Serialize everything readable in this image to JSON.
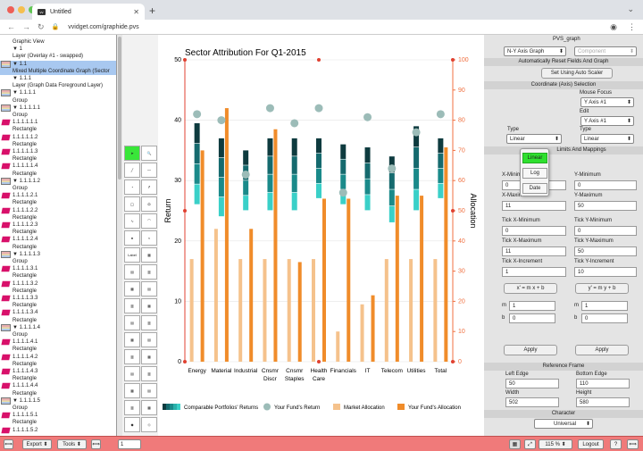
{
  "browser": {
    "tab_title": "Untitled",
    "favicon_text": "vv",
    "url": "vvidget.com/graphide.pvs"
  },
  "tree": [
    {
      "label": "Graphic View",
      "indent": 14,
      "icon": ""
    },
    {
      "label": "▼ 1",
      "indent": 14,
      "icon": ""
    },
    {
      "label": "Layer (Overlay #1 - swapped)",
      "indent": 14,
      "icon": ""
    },
    {
      "label": "▼ 1.1",
      "indent": 14,
      "icon": "grp",
      "sel": true
    },
    {
      "label": "Mixed Multiple Coordinate Graph (Sector",
      "indent": 14,
      "icon": "",
      "sel": true
    },
    {
      "label": "▼ 1.1.1",
      "indent": 14,
      "icon": ""
    },
    {
      "label": "Layer (Graph Data Foreground Layer)",
      "indent": 14,
      "icon": ""
    },
    {
      "label": "▼ 1.1.1.1",
      "indent": 14,
      "icon": "grp"
    },
    {
      "label": "Group",
      "indent": 14,
      "icon": ""
    },
    {
      "label": "▼ 1.1.1.1.1",
      "indent": 14,
      "icon": "grp"
    },
    {
      "label": "Group",
      "indent": 14,
      "icon": ""
    },
    {
      "label": "1.1.1.1.1.1",
      "indent": 14,
      "icon": "rect"
    },
    {
      "label": "Rectangle",
      "indent": 14,
      "icon": ""
    },
    {
      "label": "1.1.1.1.1.2",
      "indent": 14,
      "icon": "rect"
    },
    {
      "label": "Rectangle",
      "indent": 14,
      "icon": ""
    },
    {
      "label": "1.1.1.1.1.3",
      "indent": 14,
      "icon": "rect"
    },
    {
      "label": "Rectangle",
      "indent": 14,
      "icon": ""
    },
    {
      "label": "1.1.1.1.1.4",
      "indent": 14,
      "icon": "rect"
    },
    {
      "label": "Rectangle",
      "indent": 14,
      "icon": ""
    },
    {
      "label": "▼ 1.1.1.1.2",
      "indent": 14,
      "icon": "grp"
    },
    {
      "label": "Group",
      "indent": 14,
      "icon": ""
    },
    {
      "label": "1.1.1.1.2.1",
      "indent": 14,
      "icon": "rect"
    },
    {
      "label": "Rectangle",
      "indent": 14,
      "icon": ""
    },
    {
      "label": "1.1.1.1.2.2",
      "indent": 14,
      "icon": "rect"
    },
    {
      "label": "Rectangle",
      "indent": 14,
      "icon": ""
    },
    {
      "label": "1.1.1.1.2.3",
      "indent": 14,
      "icon": "rect"
    },
    {
      "label": "Rectangle",
      "indent": 14,
      "icon": ""
    },
    {
      "label": "1.1.1.1.2.4",
      "indent": 14,
      "icon": "rect"
    },
    {
      "label": "Rectangle",
      "indent": 14,
      "icon": ""
    },
    {
      "label": "▼ 1.1.1.1.3",
      "indent": 14,
      "icon": "grp"
    },
    {
      "label": "Group",
      "indent": 14,
      "icon": ""
    },
    {
      "label": "1.1.1.1.3.1",
      "indent": 14,
      "icon": "rect"
    },
    {
      "label": "Rectangle",
      "indent": 14,
      "icon": ""
    },
    {
      "label": "1.1.1.1.3.2",
      "indent": 14,
      "icon": "rect"
    },
    {
      "label": "Rectangle",
      "indent": 14,
      "icon": ""
    },
    {
      "label": "1.1.1.1.3.3",
      "indent": 14,
      "icon": "rect"
    },
    {
      "label": "Rectangle",
      "indent": 14,
      "icon": ""
    },
    {
      "label": "1.1.1.1.3.4",
      "indent": 14,
      "icon": "rect"
    },
    {
      "label": "Rectangle",
      "indent": 14,
      "icon": ""
    },
    {
      "label": "▼ 1.1.1.1.4",
      "indent": 14,
      "icon": "grp"
    },
    {
      "label": "Group",
      "indent": 14,
      "icon": ""
    },
    {
      "label": "1.1.1.1.4.1",
      "indent": 14,
      "icon": "rect"
    },
    {
      "label": "Rectangle",
      "indent": 14,
      "icon": ""
    },
    {
      "label": "1.1.1.1.4.2",
      "indent": 14,
      "icon": "rect"
    },
    {
      "label": "Rectangle",
      "indent": 14,
      "icon": ""
    },
    {
      "label": "1.1.1.1.4.3",
      "indent": 14,
      "icon": "rect"
    },
    {
      "label": "Rectangle",
      "indent": 14,
      "icon": ""
    },
    {
      "label": "1.1.1.1.4.4",
      "indent": 14,
      "icon": "rect"
    },
    {
      "label": "Rectangle",
      "indent": 14,
      "icon": ""
    },
    {
      "label": "▼ 1.1.1.1.5",
      "indent": 14,
      "icon": "grp"
    },
    {
      "label": "Group",
      "indent": 14,
      "icon": ""
    },
    {
      "label": "1.1.1.1.5.1",
      "indent": 14,
      "icon": "rect"
    },
    {
      "label": "Rectangle",
      "indent": 14,
      "icon": ""
    },
    {
      "label": "1.1.1.1.5.2",
      "indent": 14,
      "icon": "rect"
    }
  ],
  "palette": [
    "pointer-tool",
    "zoom-tool",
    "line-tool",
    "polyline-tool",
    "pie-tool",
    "arrow-tool",
    "circle-tool",
    "ellipse-tool",
    "curve-tool",
    "spline-tool",
    "node-tool",
    "wave-tool",
    "text-tool",
    "grid-tool",
    "graph-1",
    "graph-2",
    "graph-3",
    "graph-4",
    "graph-5",
    "graph-6",
    "graph-7",
    "graph-8",
    "graph-9",
    "graph-10",
    "graph-11",
    "graph-12",
    "graph-13",
    "graph-14",
    "graph-15",
    "graph-16",
    "graph-17",
    "graph-18",
    "graph-19",
    "graph-20"
  ],
  "chart_data": {
    "type": "bar",
    "title": "Sector Attribution For Q1-2015",
    "ylabel": "Return",
    "y2label": "Allocation",
    "ylim": [
      0,
      50
    ],
    "y2lim": [
      0,
      100
    ],
    "yticks": [
      0,
      10,
      20,
      30,
      40,
      50
    ],
    "y2ticks": [
      0,
      10,
      20,
      30,
      40,
      50,
      60,
      70,
      80,
      90,
      100
    ],
    "categories": [
      "Energy",
      "Material",
      "Industrial",
      "Cnsmr Discr",
      "Cnsmr Staples",
      "Health Care",
      "Financials",
      "IT",
      "Telecom",
      "Utilities",
      "Total"
    ],
    "series": [
      {
        "name": "Comparable Portfolios' Returns",
        "type": "floating-bar",
        "low": [
          26,
          24,
          25,
          25,
          25,
          27,
          26,
          25,
          23,
          25,
          27
        ],
        "high": [
          39.5,
          37,
          35,
          37,
          37,
          37,
          36,
          35.5,
          34,
          39,
          37
        ]
      },
      {
        "name": "Your Fund's Return",
        "type": "scatter",
        "values": [
          41,
          40,
          31,
          42,
          39.5,
          42,
          28,
          40.5,
          32,
          38,
          41
        ]
      },
      {
        "name": "Market Allocation",
        "type": "bar",
        "values": [
          34,
          44,
          34,
          34,
          34,
          34,
          10,
          19,
          34,
          34,
          34
        ]
      },
      {
        "name": "Your Fund's Allocation",
        "type": "bar",
        "values": [
          70,
          84,
          44,
          77,
          33,
          54,
          54,
          22,
          55,
          55,
          71
        ]
      }
    ],
    "colors": {
      "comparable_dark": "#0e3b3f",
      "comparable_mid": "#1a8a8a",
      "comparable_light": "#3ad0c8",
      "fund_return": "#9cbcb8",
      "market_alloc": "#f5c28c",
      "fund_alloc": "#f08c2a",
      "axis_right": "#f07040"
    }
  },
  "panel": {
    "title": "PVS_graph",
    "graph_type": "N-Y Axis Graph",
    "component": "Component",
    "auto_reset_header": "Automatically Reset Fields And Graph",
    "auto_scaler_label": "Set Using Auto Scaler",
    "coord_header": "Coordinate (Axis) Selection",
    "mouse_focus_label": "Mouse Focus",
    "mouse_focus_value": "Y Axis #1",
    "edit_label": "Edit",
    "edit_value": "Y Axis #1",
    "type_label_left": "Type",
    "type_value_left": "Linear",
    "type_label_right": "Type",
    "type_value_right": "Linear",
    "limits_header": "Limits And Mappings",
    "dropdown": [
      "Linear",
      "Log",
      "Date"
    ],
    "xmin_label": "X-Minimum",
    "xmin": "0",
    "ymin_label": "Y-Minimum",
    "ymin": "0",
    "xmax_label": "X-Maximum",
    "xmax": "11",
    "ymax_label": "Y-Maximum",
    "ymax": "50",
    "tick_xmin_label": "Tick X-Minimum",
    "tick_xmin": "0",
    "tick_ymin_label": "Tick Y-Minimum",
    "tick_ymin": "0",
    "tick_xmax_label": "Tick X-Maximum",
    "tick_xmax": "11",
    "tick_ymax_label": "Tick Y-Maximum",
    "tick_ymax": "50",
    "tick_xinc_label": "Tick X-Increment",
    "tick_xinc": "1",
    "tick_yinc_label": "Tick Y-Increment",
    "tick_yinc": "10",
    "xmap_label": "x' = m x + b",
    "ymap_label": "y' = m y + b",
    "m_left": "1",
    "b_left": "0",
    "m_right": "1",
    "b_right": "0",
    "m": "m",
    "b": "b",
    "apply_left": "Apply",
    "apply_right": "Apply",
    "frame_header": "Reference Frame",
    "left_edge_label": "Left Edge",
    "left_edge": "50",
    "bottom_edge_label": "Bottom Edge",
    "bottom_edge": "110",
    "width_label": "Width",
    "width_value": "502",
    "height_label": "Height",
    "height_value": "580",
    "character_header": "Character",
    "character_value": "Universal"
  },
  "status": {
    "export": "Export",
    "tools": "Tools",
    "page": "1",
    "zoom": "115 %",
    "logout": "Logout",
    "help": "?"
  }
}
